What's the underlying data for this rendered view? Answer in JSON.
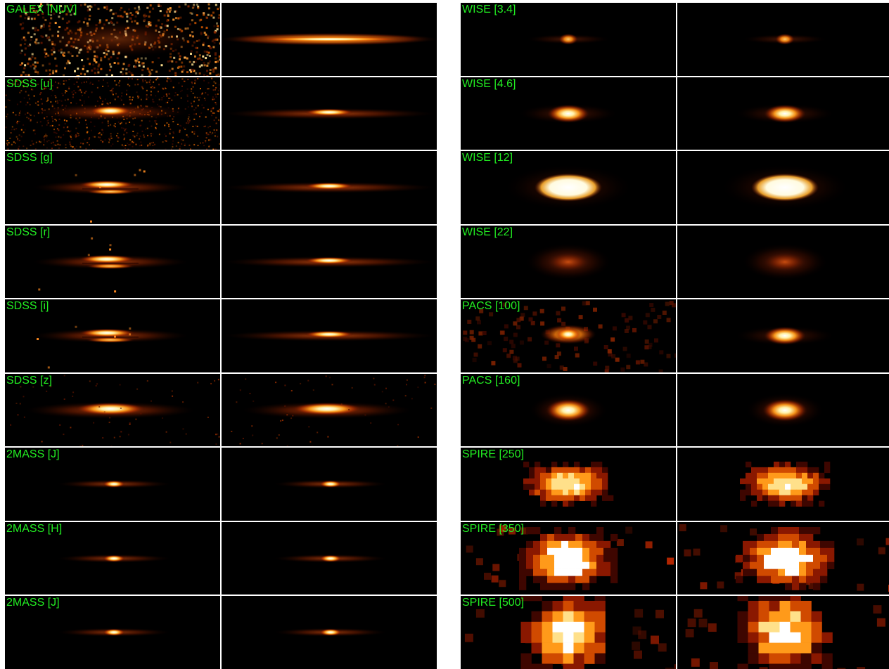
{
  "colors": {
    "label": "#22ee22",
    "background": "#000000",
    "divider": "#ffffff"
  },
  "left_bands": [
    {
      "label": "GALEX [NUV]",
      "obs": "noisy",
      "model": "disk"
    },
    {
      "label": "SDSS [u]",
      "obs": "noisy-disk",
      "model": "disk-core"
    },
    {
      "label": "SDSS [g]",
      "obs": "dustlane",
      "model": "disk-core"
    },
    {
      "label": "SDSS [r]",
      "obs": "dustlane",
      "model": "disk-core"
    },
    {
      "label": "SDSS [i]",
      "obs": "dustlane",
      "model": "disk-core"
    },
    {
      "label": "SDSS [z]",
      "obs": "bright-disk",
      "model": "bright-disk"
    },
    {
      "label": "2MASS [J]",
      "obs": "compact",
      "model": "compact"
    },
    {
      "label": "2MASS [H]",
      "obs": "compact",
      "model": "compact"
    },
    {
      "label": "2MASS [J]",
      "obs": "compact",
      "model": "compact"
    }
  ],
  "right_bands": [
    {
      "label": "WISE [3.4]",
      "obs": "small",
      "model": "small"
    },
    {
      "label": "WISE [4.6]",
      "obs": "medium",
      "model": "medium"
    },
    {
      "label": "WISE [12]",
      "obs": "large",
      "model": "large"
    },
    {
      "label": "WISE [22]",
      "obs": "faint",
      "model": "faint"
    },
    {
      "label": "PACS [100]",
      "obs": "pacs-noisy",
      "model": "medium"
    },
    {
      "label": "PACS [160]",
      "obs": "pacs",
      "model": "pacs"
    },
    {
      "label": "SPIRE [250]",
      "obs": "pixel-small",
      "model": "pixel-small"
    },
    {
      "label": "SPIRE [350]",
      "obs": "pixel-big",
      "model": "pixel-big"
    },
    {
      "label": "SPIRE [500]",
      "obs": "pixel-huge",
      "model": "pixel-huge"
    }
  ]
}
